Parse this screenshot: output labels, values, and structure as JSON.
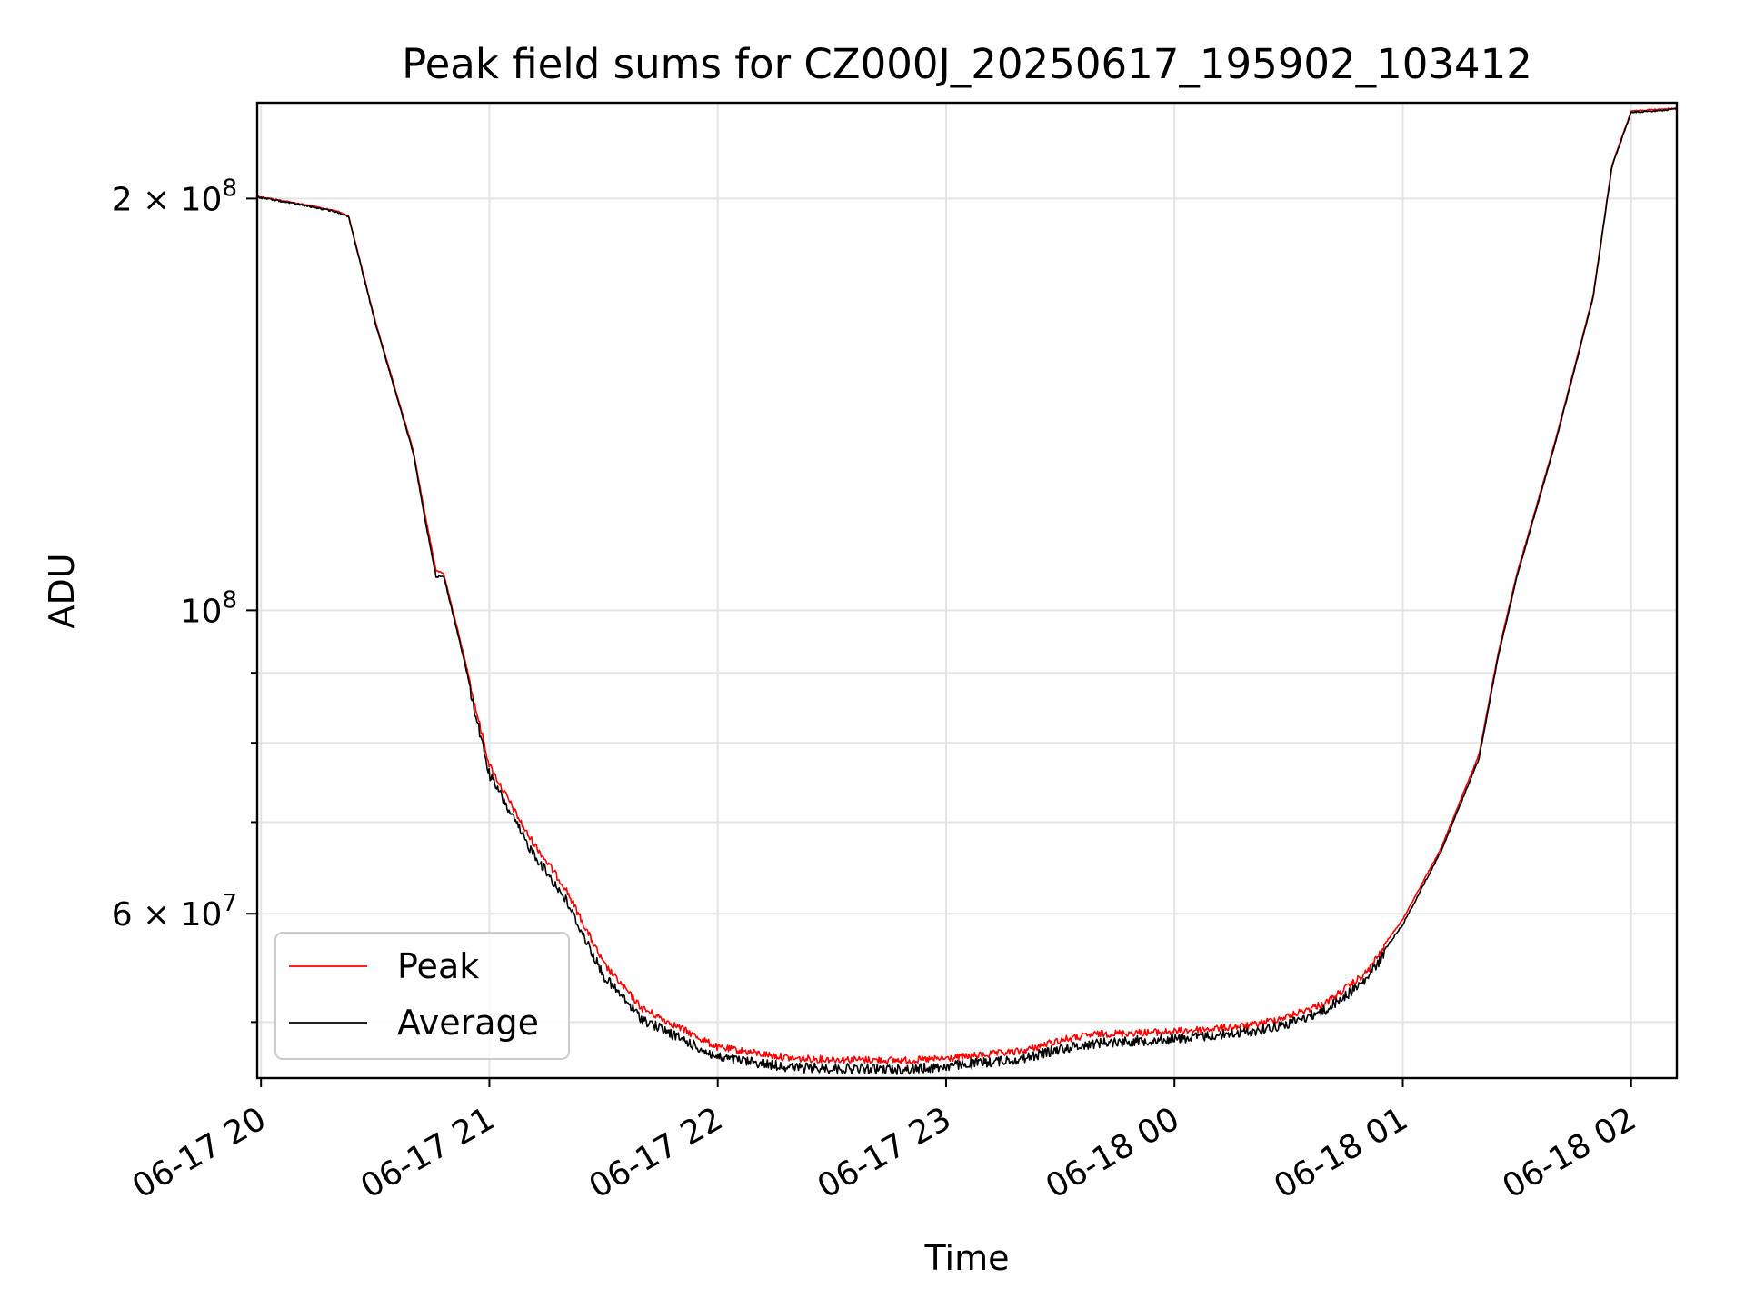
{
  "chart_data": {
    "type": "line",
    "title": "Peak field sums for CZ000J_20250617_195902_103412",
    "xlabel": "Time",
    "ylabel": "ADU",
    "y_scale": "log",
    "grid": true,
    "legend_position": "lower-left",
    "xlim": [
      "2025-06-17 19:59",
      "2025-06-18 02:12"
    ],
    "ylim": [
      45500000,
      235000000
    ],
    "x_ticks": [
      "06-17 20",
      "06-17 21",
      "06-17 22",
      "06-17 23",
      "06-18 00",
      "06-18 01",
      "06-18 02"
    ],
    "y_tick_labels": [
      {
        "value": 200000000,
        "base": "2",
        "times": "×",
        "power": "10",
        "exp": "8"
      },
      {
        "value": 100000000,
        "base": "",
        "times": "",
        "power": "10",
        "exp": "8"
      },
      {
        "value": 60000000,
        "base": "6",
        "times": "×",
        "power": "10",
        "exp": "7"
      }
    ],
    "y_minor_ticks": [
      50000000,
      70000000,
      80000000,
      90000000
    ],
    "x_times": [
      "2025-06-17 19:59",
      "2025-06-17 20:10",
      "2025-06-17 20:20",
      "2025-06-17 20:23",
      "2025-06-17 20:30",
      "2025-06-17 20:40",
      "2025-06-17 20:43",
      "2025-06-17 20:46",
      "2025-06-17 20:48",
      "2025-06-17 20:52",
      "2025-06-17 21:00",
      "2025-06-17 21:10",
      "2025-06-17 21:20",
      "2025-06-17 21:30",
      "2025-06-17 21:40",
      "2025-06-17 22:00",
      "2025-06-17 22:20",
      "2025-06-17 22:40",
      "2025-06-17 22:50",
      "2025-06-17 23:00",
      "2025-06-17 23:20",
      "2025-06-17 23:30",
      "2025-06-17 23:40",
      "2025-06-18 00:00",
      "2025-06-18 00:20",
      "2025-06-18 00:30",
      "2025-06-18 00:40",
      "2025-06-18 00:50",
      "2025-06-18 01:00",
      "2025-06-18 01:10",
      "2025-06-18 01:20",
      "2025-06-18 01:25",
      "2025-06-18 01:30",
      "2025-06-18 01:40",
      "2025-06-18 01:50",
      "2025-06-18 01:55",
      "2025-06-18 02:00",
      "2025-06-18 02:12"
    ],
    "series": [
      {
        "name": "Peak",
        "color": "#ff0000",
        "values": [
          201000000,
          198500000,
          196000000,
          194500000,
          163000000,
          131000000,
          118000000,
          107000000,
          106500000,
          96000000,
          77500000,
          69000000,
          63000000,
          55500000,
          51500000,
          48200000,
          47300000,
          47200000,
          47150000,
          47300000,
          47900000,
          48800000,
          49300000,
          49500000,
          50000000,
          50800000,
          52000000,
          54500000,
          59500000,
          67000000,
          78500000,
          93000000,
          106500000,
          133000000,
          170000000,
          212000000,
          232000000,
          233000000
        ]
      },
      {
        "name": "Average",
        "color": "#000000",
        "values": [
          200800000,
          198300000,
          195800000,
          194300000,
          162500000,
          130500000,
          117000000,
          106000000,
          106000000,
          95500000,
          76500000,
          68000000,
          62000000,
          54500000,
          50700000,
          47500000,
          46700000,
          46600000,
          46550000,
          46800000,
          47400000,
          48200000,
          48700000,
          49000000,
          49600000,
          50300000,
          51500000,
          54000000,
          59000000,
          66700000,
          78000000,
          92500000,
          106000000,
          132500000,
          169500000,
          211500000,
          231500000,
          232800000
        ]
      }
    ]
  }
}
